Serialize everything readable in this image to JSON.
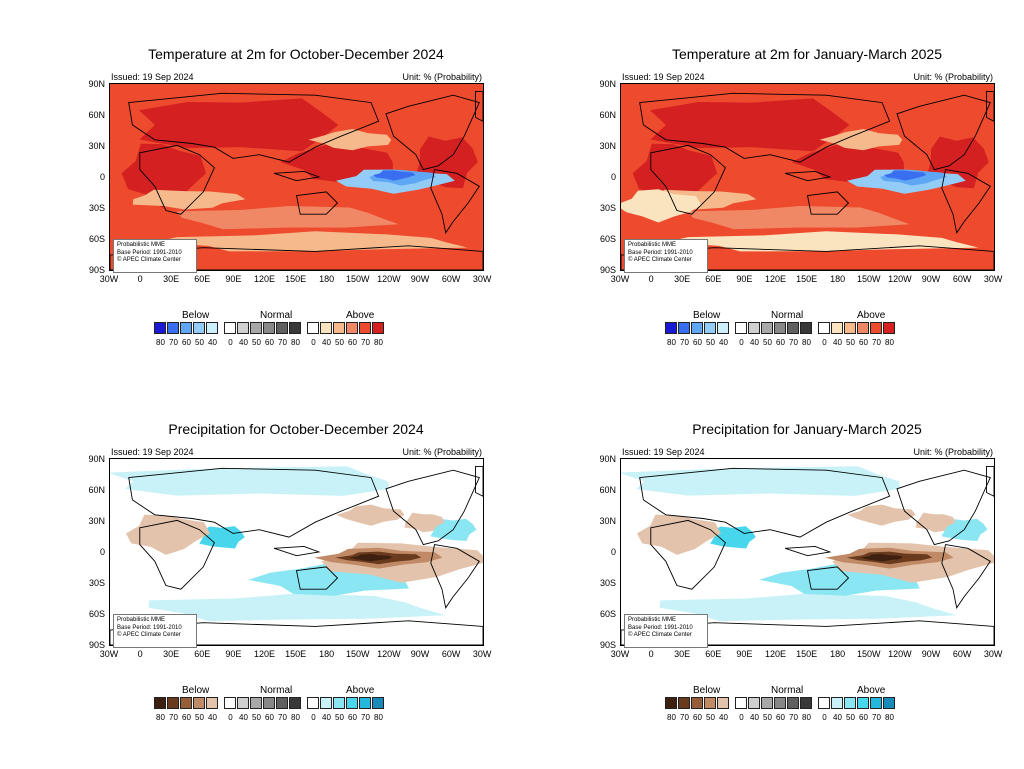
{
  "issued": "Issued: 19 Sep 2024",
  "unit": "Unit: % (Probability)",
  "note_lines": [
    "Probabilistic MME",
    "Base Period: 1991-2010",
    "© APEC Climate Center"
  ],
  "lat_labels": [
    "90N",
    "60N",
    "30N",
    "0",
    "30S",
    "60S",
    "90S"
  ],
  "lon_labels": [
    "30W",
    "0",
    "30E",
    "60E",
    "90E",
    "120E",
    "150E",
    "180",
    "150W",
    "120W",
    "90W",
    "60W",
    "30W"
  ],
  "legend": {
    "below": "Below",
    "normal": "Normal",
    "above": "Above",
    "below_nums": [
      "80",
      "70",
      "60",
      "50",
      "40"
    ],
    "normal_nums": [
      "0",
      "40",
      "50",
      "60",
      "70",
      "80"
    ],
    "above_nums": [
      "0",
      "40",
      "50",
      "60",
      "70",
      "80"
    ]
  },
  "panels": [
    {
      "id": "temp-ond",
      "title": "Temperature at 2m for October-December 2024",
      "variable": "temperature",
      "colors": {
        "below": [
          "#1a1ad6",
          "#3a6ef0",
          "#5fa6f5",
          "#93cdf7",
          "#cdeefb"
        ],
        "normal": [
          "#ffffff",
          "#d0d0d0",
          "#a8a8a8",
          "#888888",
          "#606060",
          "#383838"
        ],
        "above": [
          "#ffffff",
          "#fae4c0",
          "#f5b98c",
          "#f08866",
          "#ee4a2e",
          "#d42020"
        ]
      }
    },
    {
      "id": "temp-jfm",
      "title": "Temperature at 2m for January-March 2025",
      "variable": "temperature",
      "colors": {
        "below": [
          "#1a1ad6",
          "#3a6ef0",
          "#5fa6f5",
          "#93cdf7",
          "#cdeefb"
        ],
        "normal": [
          "#ffffff",
          "#d0d0d0",
          "#a8a8a8",
          "#888888",
          "#606060",
          "#383838"
        ],
        "above": [
          "#ffffff",
          "#fae4c0",
          "#f5b98c",
          "#f08866",
          "#ee4a2e",
          "#d42020"
        ]
      }
    },
    {
      "id": "prec-ond",
      "title": "Precipitation for October-December 2024",
      "variable": "precipitation",
      "colors": {
        "below": [
          "#3d2010",
          "#6a3a1e",
          "#965d38",
          "#c08a66",
          "#e3c3ab"
        ],
        "normal": [
          "#ffffff",
          "#d0d0d0",
          "#a8a8a8",
          "#888888",
          "#606060",
          "#383838"
        ],
        "above": [
          "#ffffff",
          "#c8f2f8",
          "#8ae6f2",
          "#47d6ec",
          "#26b8dc",
          "#1a8ab8"
        ]
      }
    },
    {
      "id": "prec-jfm",
      "title": "Precipitation for January-March 2025",
      "variable": "precipitation",
      "colors": {
        "below": [
          "#3d2010",
          "#6a3a1e",
          "#965d38",
          "#c08a66",
          "#e3c3ab"
        ],
        "normal": [
          "#ffffff",
          "#d0d0d0",
          "#a8a8a8",
          "#888888",
          "#606060",
          "#383838"
        ],
        "above": [
          "#ffffff",
          "#c8f2f8",
          "#8ae6f2",
          "#47d6ec",
          "#26b8dc",
          "#1a8ab8"
        ]
      }
    }
  ]
}
